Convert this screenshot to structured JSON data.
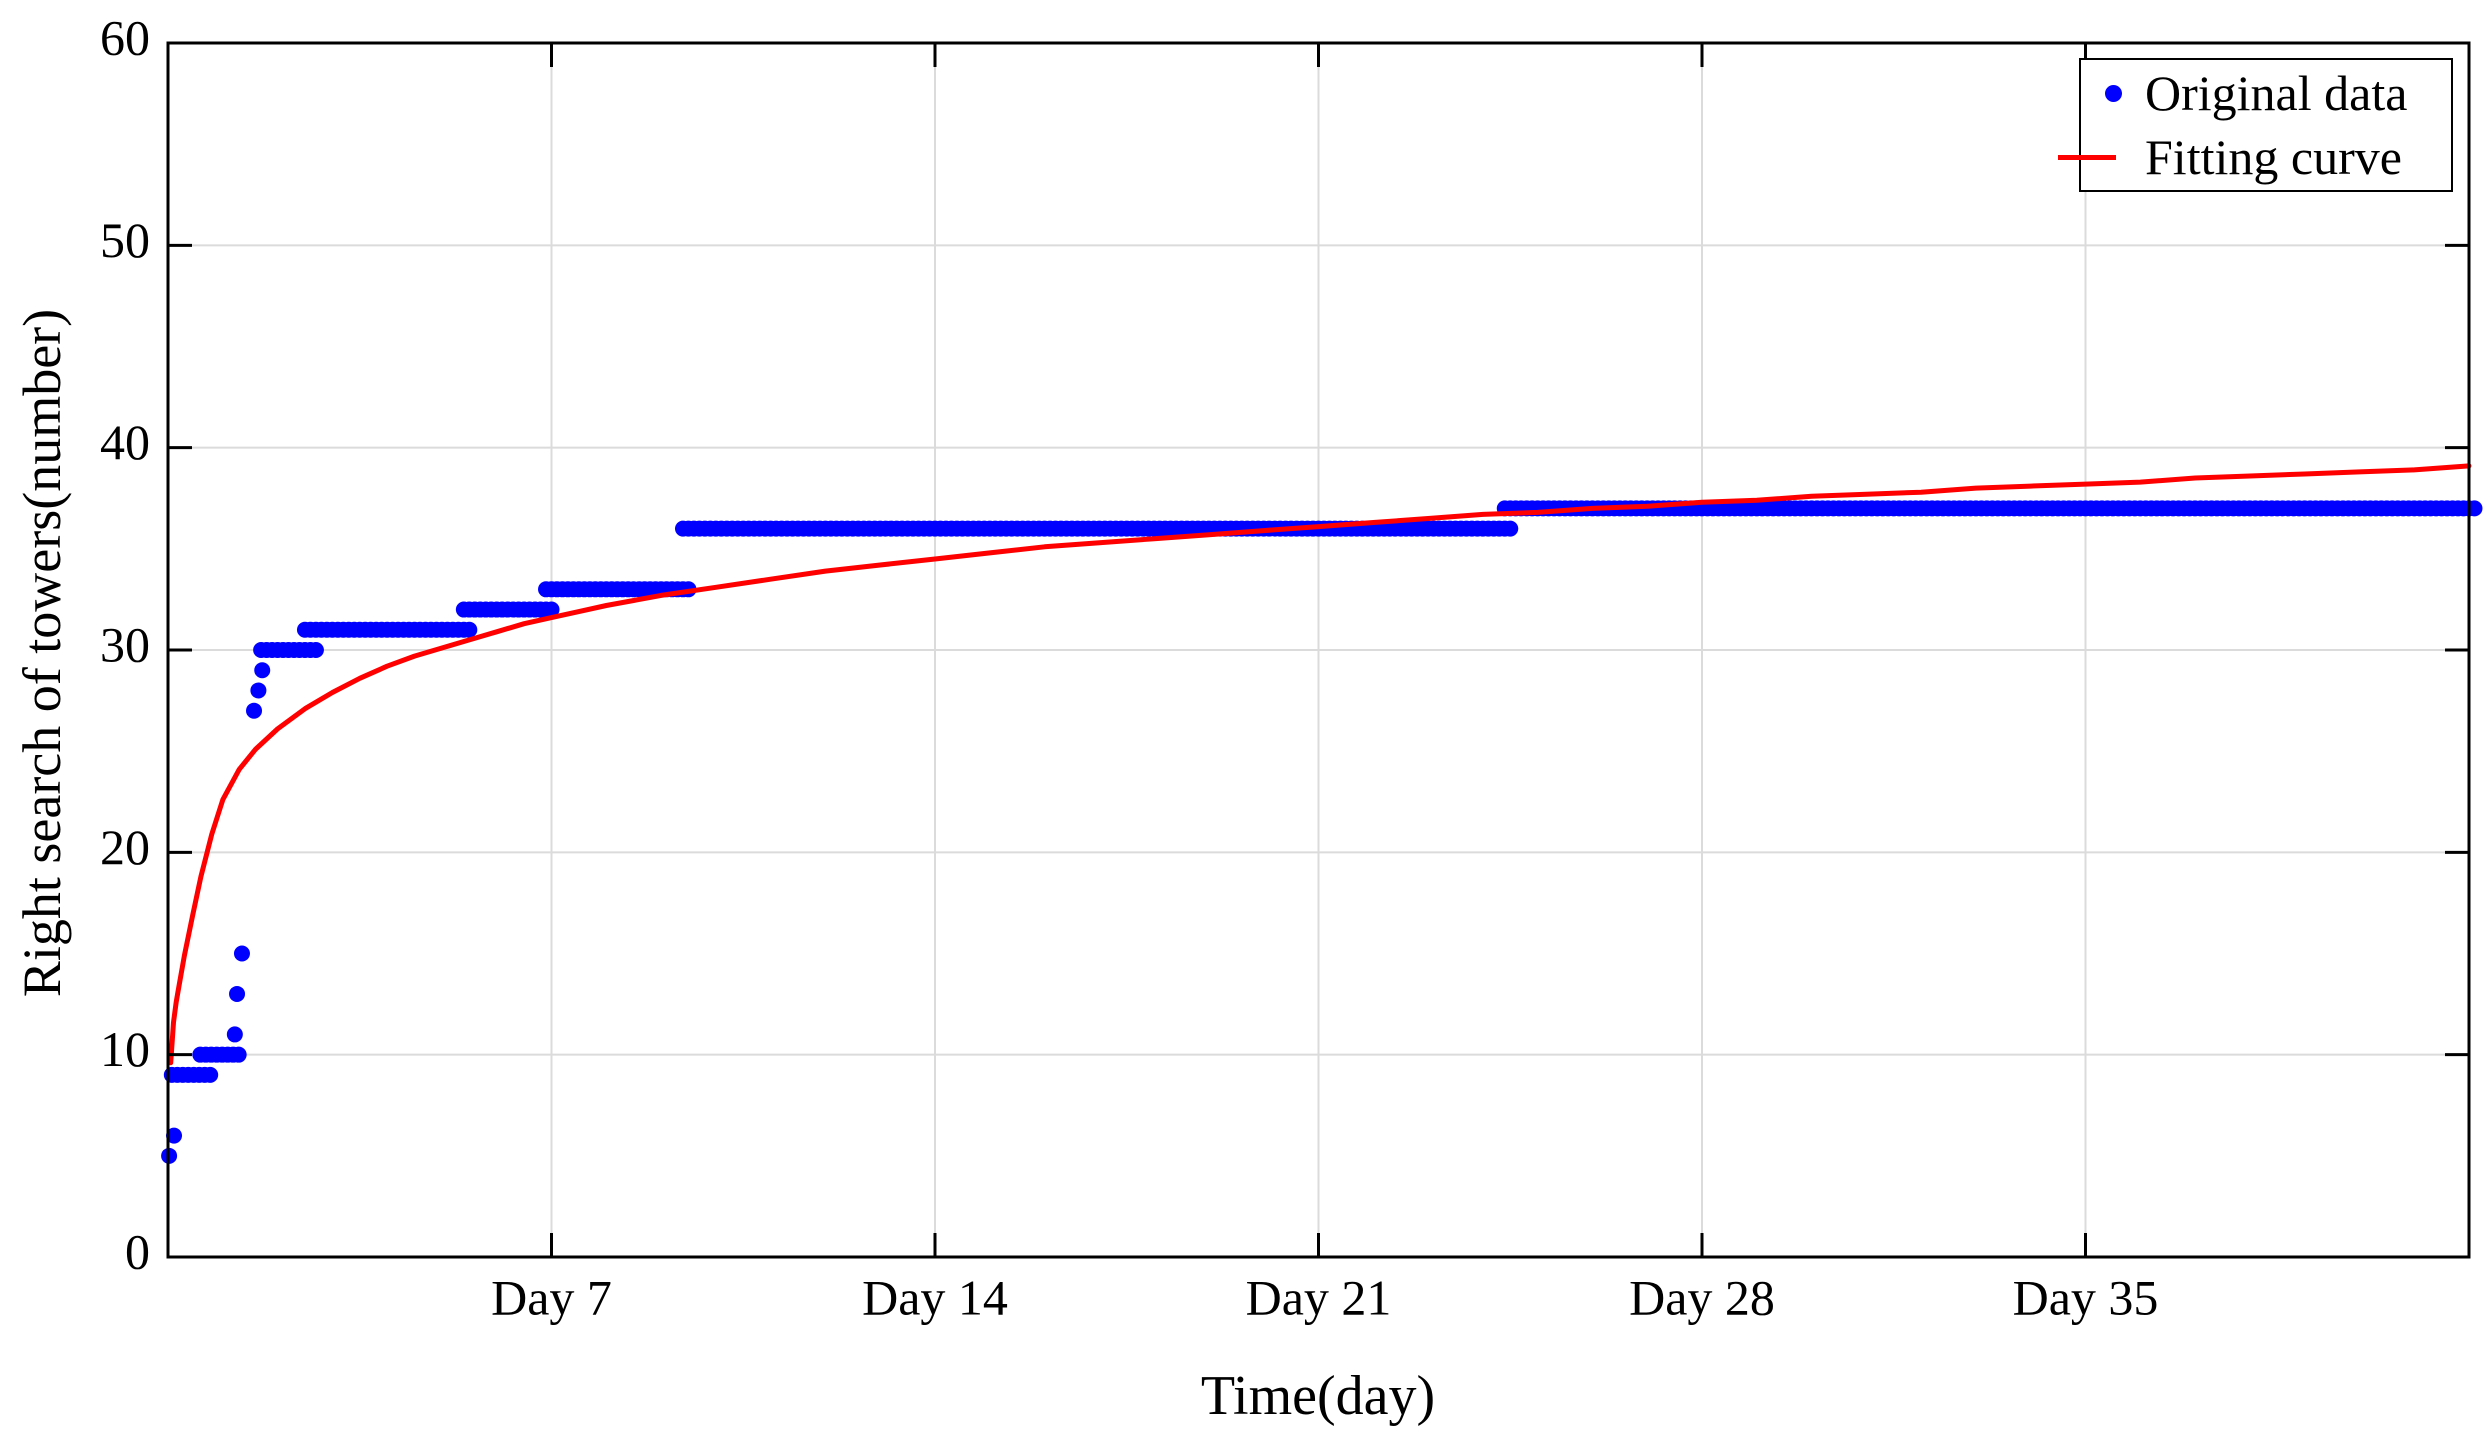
{
  "chart_data": {
    "type": "scatter",
    "title": "",
    "xlabel": "Time(day)",
    "ylabel": "Right search of towers(number)",
    "xlim": [
      0,
      42
    ],
    "ylim": [
      0,
      60
    ],
    "grid": true,
    "x_ticks": [
      {
        "day": 7,
        "label": "Day 7"
      },
      {
        "day": 14,
        "label": "Day 14"
      },
      {
        "day": 21,
        "label": "Day 21"
      },
      {
        "day": 28,
        "label": "Day 28"
      },
      {
        "day": 35,
        "label": "Day 35"
      }
    ],
    "y_ticks": [
      0,
      10,
      20,
      30,
      40,
      50,
      60
    ],
    "legend": [
      {
        "label": "Original data",
        "marker": "dot",
        "color": "#0000ff"
      },
      {
        "label": "Fitting curve",
        "marker": "line",
        "color": "#ff0000"
      }
    ],
    "legend_position": "top-right",
    "series": [
      {
        "name": "Original data",
        "type": "scatter",
        "color": "#0000ff",
        "marker": "filled-circle",
        "marker_radius": 8,
        "sample_step_days": 0.1,
        "step_runs": [
          {
            "from_day": 0.07,
            "to_day": 0.73,
            "value": 9
          },
          {
            "from_day": 0.59,
            "to_day": 1.26,
            "value": 10
          },
          {
            "from_day": 1.7,
            "to_day": 2.67,
            "value": 30
          },
          {
            "from_day": 2.5,
            "to_day": 5.45,
            "value": 31
          },
          {
            "from_day": 5.4,
            "to_day": 7.0,
            "value": 32
          },
          {
            "from_day": 6.9,
            "to_day": 9.5,
            "value": 33
          },
          {
            "from_day": 9.4,
            "to_day": 24.5,
            "value": 36
          },
          {
            "from_day": 24.4,
            "to_day": 42.1,
            "value": 37
          }
        ],
        "single_points": [
          {
            "day": 0.02,
            "value": 5
          },
          {
            "day": 0.11,
            "value": 6
          },
          {
            "day": 1.22,
            "value": 11
          },
          {
            "day": 1.26,
            "value": 13
          },
          {
            "day": 1.35,
            "value": 15
          },
          {
            "day": 1.57,
            "value": 27
          },
          {
            "day": 1.65,
            "value": 28
          },
          {
            "day": 1.72,
            "value": 29
          }
        ]
      },
      {
        "name": "Fitting curve",
        "type": "line",
        "color": "#ff0000",
        "line_width": 5,
        "points": [
          [
            0.05,
            9.6
          ],
          [
            0.08,
            10.8
          ],
          [
            0.1,
            11.6
          ],
          [
            0.15,
            12.6
          ],
          [
            0.2,
            13.4
          ],
          [
            0.3,
            14.9
          ],
          [
            0.45,
            16.9
          ],
          [
            0.6,
            18.8
          ],
          [
            0.8,
            20.9
          ],
          [
            1.0,
            22.6
          ],
          [
            1.3,
            24.1
          ],
          [
            1.6,
            25.1
          ],
          [
            2.0,
            26.1
          ],
          [
            2.5,
            27.1
          ],
          [
            3.0,
            27.9
          ],
          [
            3.5,
            28.6
          ],
          [
            4.0,
            29.2
          ],
          [
            4.5,
            29.7
          ],
          [
            5.0,
            30.1
          ],
          [
            5.5,
            30.5
          ],
          [
            6.0,
            30.9
          ],
          [
            6.5,
            31.3
          ],
          [
            7.0,
            31.6
          ],
          [
            7.5,
            31.9
          ],
          [
            8.0,
            32.2
          ],
          [
            9.0,
            32.7
          ],
          [
            10,
            33.1
          ],
          [
            11,
            33.5
          ],
          [
            12,
            33.9
          ],
          [
            13,
            34.2
          ],
          [
            14,
            34.5
          ],
          [
            15,
            34.8
          ],
          [
            16,
            35.1
          ],
          [
            17,
            35.3
          ],
          [
            18,
            35.5
          ],
          [
            19,
            35.7
          ],
          [
            20,
            35.9
          ],
          [
            21,
            36.1
          ],
          [
            22,
            36.3
          ],
          [
            23,
            36.5
          ],
          [
            24,
            36.7
          ],
          [
            25,
            36.8
          ],
          [
            26,
            37.0
          ],
          [
            27,
            37.1
          ],
          [
            28,
            37.3
          ],
          [
            29,
            37.4
          ],
          [
            30,
            37.6
          ],
          [
            31,
            37.7
          ],
          [
            32,
            37.8
          ],
          [
            33,
            38.0
          ],
          [
            34,
            38.1
          ],
          [
            35,
            38.2
          ],
          [
            36,
            38.3
          ],
          [
            37,
            38.5
          ],
          [
            38,
            38.6
          ],
          [
            39,
            38.7
          ],
          [
            40,
            38.8
          ],
          [
            41,
            38.9
          ],
          [
            42,
            39.1
          ]
        ]
      }
    ],
    "colors": {
      "axis": "#000000",
      "grid": "#dbdbdb",
      "tick_label": "#000000",
      "background": "#ffffff"
    }
  }
}
